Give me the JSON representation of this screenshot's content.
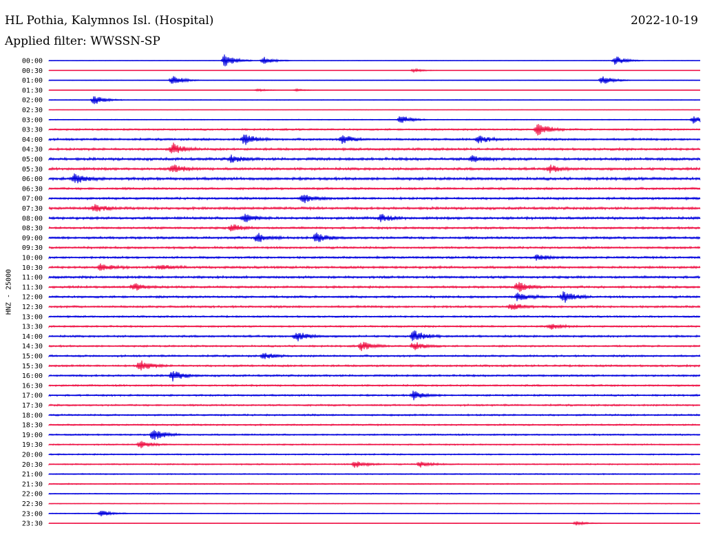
{
  "header": {
    "station": "HL Pothia, Kalymnos Isl. (Hospital)",
    "date": "2022-10-19",
    "filter": "Applied filter: WWSSN-SP"
  },
  "colors": {
    "even_hour": "#0000dd",
    "half_hour": "#ee1144",
    "background": "#ffffff"
  },
  "chart_data": {
    "type": "line",
    "title": "HL Pothia, Kalymnos Isl. (Hospital)",
    "date": "2022-10-19",
    "ylabel": "HNZ - 25000",
    "categories": [
      "00:00",
      "00:30",
      "01:00",
      "01:30",
      "02:00",
      "02:30",
      "03:00",
      "03:30",
      "04:00",
      "04:30",
      "05:00",
      "05:30",
      "06:00",
      "06:30",
      "07:00",
      "07:30",
      "08:00",
      "08:30",
      "09:00",
      "09:30",
      "10:00",
      "10:30",
      "11:00",
      "11:30",
      "12:00",
      "12:30",
      "13:00",
      "13:30",
      "14:00",
      "14:30",
      "15:00",
      "15:30",
      "16:00",
      "16:30",
      "17:00",
      "17:30",
      "18:00",
      "18:30",
      "19:00",
      "19:30",
      "20:00",
      "20:30",
      "21:00",
      "21:30",
      "22:00",
      "22:30",
      "23:00",
      "23:30"
    ],
    "x_range_minutes": [
      0,
      30
    ],
    "noise_level": [
      0.12,
      0.06,
      0.14,
      0.05,
      0.18,
      0.12,
      0.2,
      0.45,
      0.55,
      0.6,
      0.7,
      0.65,
      0.7,
      0.55,
      0.6,
      0.65,
      0.65,
      0.55,
      0.6,
      0.55,
      0.55,
      0.6,
      0.6,
      0.55,
      0.55,
      0.55,
      0.45,
      0.45,
      0.5,
      0.45,
      0.5,
      0.5,
      0.5,
      0.45,
      0.45,
      0.45,
      0.45,
      0.4,
      0.4,
      0.35,
      0.35,
      0.35,
      0.3,
      0.3,
      0.25,
      0.2,
      0.2,
      0.1
    ],
    "events": [
      [
        [
          0.27,
          4.5
        ],
        [
          0.33,
          2.5
        ],
        [
          0.87,
          3.2
        ]
      ],
      [
        [
          0.56,
          1.2
        ]
      ],
      [
        [
          0.19,
          3.5
        ],
        [
          0.85,
          3.2
        ]
      ],
      [
        [
          0.32,
          1
        ],
        [
          0.38,
          0.8
        ]
      ],
      [
        [
          0.07,
          3.2
        ]
      ],
      [],
      [
        [
          0.54,
          3
        ],
        [
          0.99,
          3
        ]
      ],
      [
        [
          0.75,
          5
        ]
      ],
      [
        [
          0.3,
          4
        ],
        [
          0.45,
          3
        ],
        [
          0.66,
          2.5
        ]
      ],
      [
        [
          0.19,
          4
        ]
      ],
      [
        [
          0.28,
          2.5
        ],
        [
          0.65,
          2
        ]
      ],
      [
        [
          0.19,
          3
        ],
        [
          0.77,
          2.5
        ]
      ],
      [
        [
          0.04,
          3.5
        ]
      ],
      [],
      [
        [
          0.39,
          3
        ]
      ],
      [
        [
          0.07,
          2.5
        ]
      ],
      [
        [
          0.3,
          3
        ],
        [
          0.51,
          2.5
        ]
      ],
      [
        [
          0.28,
          2.5
        ]
      ],
      [
        [
          0.32,
          3
        ],
        [
          0.41,
          3
        ]
      ],
      [],
      [
        [
          0.75,
          2
        ]
      ],
      [
        [
          0.08,
          2.5
        ],
        [
          0.17,
          2
        ]
      ],
      [],
      [
        [
          0.13,
          2.5
        ],
        [
          0.72,
          3.5
        ]
      ],
      [
        [
          0.72,
          2.5
        ],
        [
          0.79,
          4
        ]
      ],
      [
        [
          0.71,
          2.5
        ]
      ],
      [],
      [
        [
          0.77,
          2
        ]
      ],
      [
        [
          0.38,
          3.5
        ],
        [
          0.56,
          4
        ]
      ],
      [
        [
          0.48,
          3
        ],
        [
          0.56,
          3
        ]
      ],
      [
        [
          0.33,
          2
        ]
      ],
      [
        [
          0.14,
          4
        ]
      ],
      [
        [
          0.19,
          3.5
        ]
      ],
      [],
      [
        [
          0.56,
          3
        ]
      ],
      [],
      [],
      [],
      [
        [
          0.16,
          4
        ]
      ],
      [
        [
          0.14,
          2.5
        ]
      ],
      [],
      [
        [
          0.47,
          2.5
        ],
        [
          0.57,
          2
        ]
      ],
      [],
      [],
      [],
      [],
      [
        [
          0.08,
          2
        ]
      ],
      [
        [
          0.81,
          1.5
        ]
      ]
    ]
  }
}
